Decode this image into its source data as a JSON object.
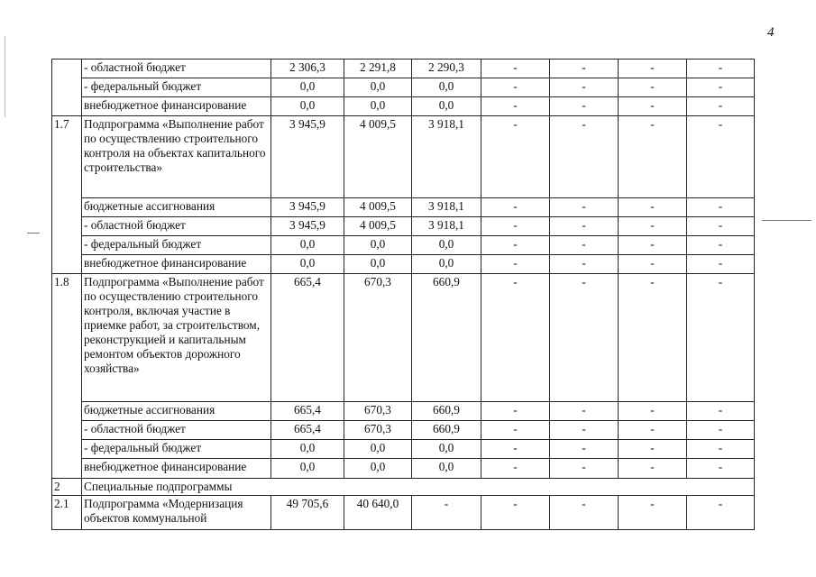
{
  "page_number": "4",
  "rows": [
    {
      "idx": "",
      "idx_span": 3,
      "label": "- областной бюджет",
      "values": [
        "2 306,3",
        "2 291,8",
        "2 290,3",
        "-",
        "-",
        "-",
        "-"
      ]
    },
    {
      "label": "- федеральный бюджет",
      "values": [
        "0,0",
        "0,0",
        "0,0",
        "-",
        "-",
        "-",
        "-"
      ]
    },
    {
      "label": "внебюджетное финансирование",
      "values": [
        "0,0",
        "0,0",
        "0,0",
        "-",
        "-",
        "-",
        "-"
      ]
    },
    {
      "idx": "1.7",
      "idx_span": 5,
      "label": "Подпрограмма «Выполнение работ по осуществлению строительного контроля на объектах капитального строительства»",
      "values": [
        "3 945,9",
        "4 009,5",
        "3 918,1",
        "-",
        "-",
        "-",
        "-"
      ]
    },
    {
      "label": "бюджетные ассигнования",
      "values": [
        "3 945,9",
        "4 009,5",
        "3 918,1",
        "-",
        "-",
        "-",
        "-"
      ]
    },
    {
      "label": "- областной бюджет",
      "values": [
        "3 945,9",
        "4 009,5",
        "3 918,1",
        "-",
        "-",
        "-",
        "-"
      ]
    },
    {
      "label": "- федеральный бюджет",
      "values": [
        "0,0",
        "0,0",
        "0,0",
        "-",
        "-",
        "-",
        "-"
      ]
    },
    {
      "label": "внебюджетное финансирование",
      "values": [
        "0,0",
        "0,0",
        "0,0",
        "-",
        "-",
        "-",
        "-"
      ]
    },
    {
      "idx": "1.8",
      "idx_span": 5,
      "label": "Подпрограмма «Выполнение работ по осуществлению строительного контроля, включая участие в приемке работ, за строительством, реконструкцией и капитальным ремонтом объектов дорожного хозяйства»",
      "values": [
        "665,4",
        "670,3",
        "660,9",
        "-",
        "-",
        "-",
        "-"
      ]
    },
    {
      "label": "бюджетные ассигнования",
      "values": [
        "665,4",
        "670,3",
        "660,9",
        "-",
        "-",
        "-",
        "-"
      ]
    },
    {
      "label": "- областной бюджет",
      "values": [
        "665,4",
        "670,3",
        "660,9",
        "-",
        "-",
        "-",
        "-"
      ]
    },
    {
      "label": "- федеральный бюджет",
      "values": [
        "0,0",
        "0,0",
        "0,0",
        "-",
        "-",
        "-",
        "-"
      ]
    },
    {
      "label": "внебюджетное финансирование",
      "values": [
        "0,0",
        "0,0",
        "0,0",
        "-",
        "-",
        "-",
        "-"
      ]
    },
    {
      "idx": "2",
      "idx_span": 1,
      "label": "Специальные подпрограммы",
      "section": true
    },
    {
      "idx": "2.1",
      "idx_span": 1,
      "label": "Подпрограмма «Модернизация объектов коммунальной",
      "values": [
        "49 705,6",
        "40 640,0",
        "-",
        "-",
        "-",
        "-",
        "-"
      ]
    }
  ]
}
